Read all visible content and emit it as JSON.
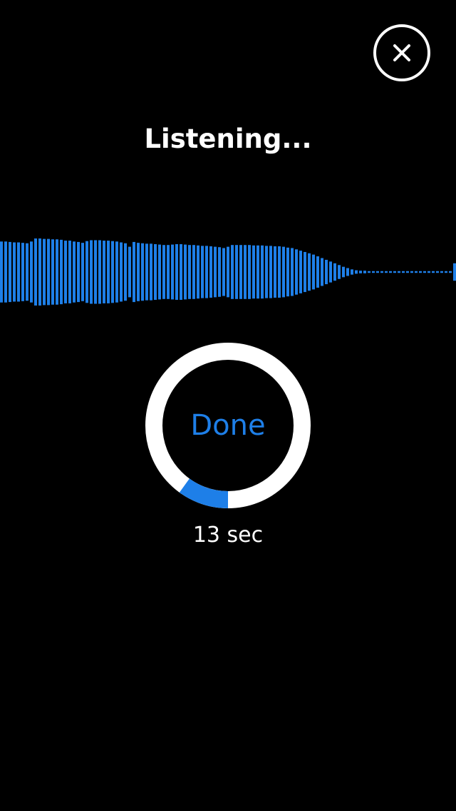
{
  "header": {
    "close_icon": "close-icon"
  },
  "status": {
    "title": "Listening..."
  },
  "waveform": {
    "color": "#1e7fe8",
    "levels": [
      0.7,
      0.7,
      0.69,
      0.68,
      0.68,
      0.67,
      0.66,
      0.7,
      0.77,
      0.77,
      0.76,
      0.76,
      0.75,
      0.75,
      0.74,
      0.72,
      0.72,
      0.7,
      0.69,
      0.67,
      0.71,
      0.73,
      0.73,
      0.73,
      0.72,
      0.72,
      0.71,
      0.7,
      0.68,
      0.66,
      0.58,
      0.69,
      0.67,
      0.66,
      0.65,
      0.65,
      0.64,
      0.63,
      0.62,
      0.62,
      0.63,
      0.64,
      0.64,
      0.63,
      0.62,
      0.62,
      0.61,
      0.6,
      0.6,
      0.59,
      0.58,
      0.57,
      0.55,
      0.58,
      0.62,
      0.62,
      0.62,
      0.62,
      0.62,
      0.61,
      0.61,
      0.61,
      0.6,
      0.6,
      0.59,
      0.59,
      0.58,
      0.56,
      0.55,
      0.52,
      0.49,
      0.46,
      0.43,
      0.4,
      0.36,
      0.32,
      0.28,
      0.24,
      0.2,
      0.16,
      0.12,
      0.09,
      0.06,
      0.04,
      0.03,
      0.03,
      0.02,
      0.02,
      0.02,
      0.02,
      0.02,
      0.02,
      0.02,
      0.02,
      0.02,
      0.02,
      0.02,
      0.02,
      0.02,
      0.02,
      0.02,
      0.02,
      0.02,
      0.02,
      0.02,
      0.02,
      0.2
    ]
  },
  "recorder": {
    "done_label": "Done",
    "elapsed_label": "13 sec",
    "progress": 0.1,
    "ring_color": "#ffffff",
    "progress_color": "#1e7fe8"
  }
}
